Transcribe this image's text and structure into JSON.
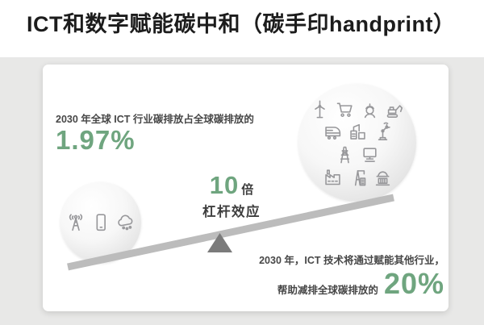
{
  "title": "ICT和数字赋能碳中和（碳手印handprint）",
  "left_stat": {
    "caption": "2030 年全球 ICT 行业碳排放占全球碳排放的",
    "value": "1.97%"
  },
  "leverage": {
    "multiplier": "10",
    "unit": "倍",
    "label": "杠杆效应"
  },
  "right_stat": {
    "line1": "2030 年，ICT 技术将通过赋能其他行业，",
    "line2_prefix": "帮助减排全球碳排放的",
    "value": "20%"
  },
  "left_ball": {
    "icons": [
      "radio-tower-icon",
      "smartphone-icon",
      "cloud-network-icon"
    ]
  },
  "right_ball": {
    "icon_rows": [
      [
        "wind-turbine-icon",
        "shopping-cart-icon",
        "worker-icon",
        "excavator-icon"
      ],
      [
        "train-icon",
        "plant-icon",
        "robot-arm-icon"
      ],
      [
        "power-pylon-icon",
        "computer-icon"
      ],
      [
        "factory-icon",
        "crane-icon",
        "bank-icon"
      ]
    ]
  },
  "colors": {
    "green": "#6fa57f",
    "title": "#1c1c1c",
    "text": "#474747",
    "beam": "#bcbcbc",
    "fulcrum": "#7b7b7b",
    "page-gray": "#e8e8e7",
    "icon": "#97979a"
  }
}
